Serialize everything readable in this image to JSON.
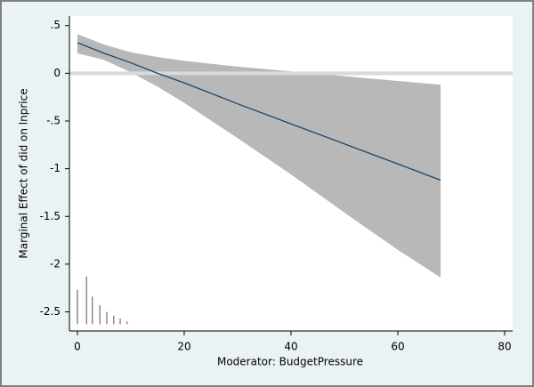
{
  "chart_data": {
    "type": "marginal-effect",
    "ylabel": "Marginal Effect of did on lnprice",
    "xlabel": "Moderator: BudgetPressure",
    "xlim": [
      -1.5,
      81.5
    ],
    "ylim": [
      -2.7,
      0.6
    ],
    "xticks": [
      0,
      20,
      40,
      60,
      80
    ],
    "yticks": [
      {
        "value": 0.5,
        "label": ".5"
      },
      0,
      {
        "value": -0.5,
        "label": "-.5"
      },
      -1,
      -1.5,
      -2,
      -2.5
    ],
    "refline": 0,
    "refline_color": "#d9d9d9",
    "x": [
      0,
      5,
      10,
      15,
      20,
      30,
      40,
      50,
      60,
      68
    ],
    "estimate": {
      "color": "#1a476f",
      "values": [
        0.32,
        0.21,
        0.11,
        0.0,
        -0.1,
        -0.32,
        -0.53,
        -0.74,
        -0.95,
        -1.12
      ]
    },
    "ci": {
      "color": "#b8b8b8",
      "upper": [
        0.41,
        0.3,
        0.22,
        0.17,
        0.13,
        0.07,
        0.02,
        -0.03,
        -0.08,
        -0.12
      ],
      "lower": [
        0.21,
        0.14,
        0.01,
        -0.14,
        -0.31,
        -0.68,
        -1.06,
        -1.46,
        -1.85,
        -2.14
      ]
    },
    "histogram": {
      "color": "#555555",
      "base": -2.63,
      "x": [
        0,
        1.7,
        2.8,
        4.2,
        5.5,
        6.8,
        8,
        9.3
      ],
      "tops": [
        -2.27,
        -2.13,
        -2.34,
        -2.43,
        -2.5,
        -2.54,
        -2.57,
        -2.6
      ]
    }
  }
}
